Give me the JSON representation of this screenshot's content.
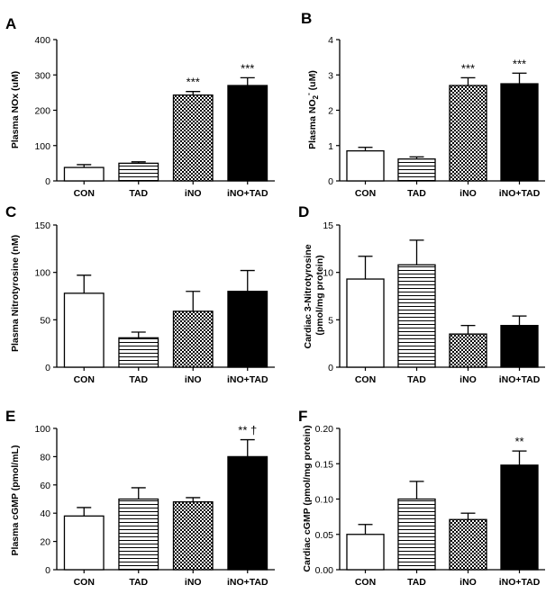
{
  "figure": {
    "panels": [
      {
        "letter": "A",
        "ylabel": "Plasma NOx (uM)",
        "ylabel_extra": ""
      },
      {
        "letter": "B",
        "ylabel": "Plasma NO",
        "ylabel_extra": "2",
        "ylabel_sup": "-",
        "ylabel_unit": " (uM)"
      },
      {
        "letter": "C",
        "ylabel": "Plasma Nitrotyrosine (nM)",
        "ylabel_extra": ""
      },
      {
        "letter": "D",
        "ylabel": "Cardiac 3-Nitrotyrosine",
        "ylabel_line2": "(pmol/mg protein)"
      },
      {
        "letter": "E",
        "ylabel": "Plasma cGMP (pmol/mL)",
        "ylabel_extra": ""
      },
      {
        "letter": "F",
        "ylabel": "Cardiac cGMP (pmol/mg protein)",
        "ylabel_extra": ""
      }
    ]
  },
  "chart_data": [
    {
      "type": "bar",
      "panel": "A",
      "categories": [
        "CON",
        "TAD",
        "iNO",
        "iNO+TAD"
      ],
      "values": [
        38,
        50,
        243,
        270
      ],
      "errors": [
        8,
        4,
        10,
        22
      ],
      "annotations": [
        "",
        "",
        "***",
        "***"
      ],
      "ylabel": "Plasma NOx (uM)",
      "ylim": [
        0,
        400
      ],
      "yticks": [
        0,
        100,
        200,
        300,
        400
      ],
      "patterns": [
        "white",
        "horizontal-lines",
        "checkered",
        "black"
      ],
      "grid": false
    },
    {
      "type": "bar",
      "panel": "B",
      "categories": [
        "CON",
        "TAD",
        "iNO",
        "iNO+TAD"
      ],
      "values": [
        0.85,
        0.62,
        2.7,
        2.75
      ],
      "errors": [
        0.1,
        0.06,
        0.22,
        0.3
      ],
      "annotations": [
        "",
        "",
        "***",
        "***"
      ],
      "ylabel": "Plasma NO2- (uM)",
      "ylim": [
        0,
        4
      ],
      "yticks": [
        0,
        1,
        2,
        3,
        4
      ],
      "patterns": [
        "white",
        "horizontal-lines",
        "checkered",
        "black"
      ],
      "grid": false
    },
    {
      "type": "bar",
      "panel": "C",
      "categories": [
        "CON",
        "TAD",
        "iNO",
        "iNO+TAD"
      ],
      "values": [
        78,
        31,
        59,
        80
      ],
      "errors": [
        19,
        6,
        21,
        22
      ],
      "annotations": [
        "",
        "",
        "",
        ""
      ],
      "ylabel": "Plasma Nitrotyrosine (nM)",
      "ylim": [
        0,
        150
      ],
      "yticks": [
        0,
        50,
        100,
        150
      ],
      "patterns": [
        "white",
        "horizontal-lines",
        "checkered",
        "black"
      ],
      "grid": false
    },
    {
      "type": "bar",
      "panel": "D",
      "categories": [
        "CON",
        "TAD",
        "iNO",
        "iNO+TAD"
      ],
      "values": [
        9.3,
        10.8,
        3.5,
        4.4
      ],
      "errors": [
        2.4,
        2.6,
        0.9,
        1.0
      ],
      "annotations": [
        "",
        "",
        "",
        ""
      ],
      "ylabel": "Cardiac 3-Nitrotyrosine (pmol/mg protein)",
      "ylim": [
        0,
        15
      ],
      "yticks": [
        0,
        5,
        10,
        15
      ],
      "patterns": [
        "white",
        "horizontal-lines",
        "checkered",
        "black"
      ],
      "grid": false
    },
    {
      "type": "bar",
      "panel": "E",
      "categories": [
        "CON",
        "TAD",
        "iNO",
        "iNO+TAD"
      ],
      "values": [
        38,
        50,
        48,
        80
      ],
      "errors": [
        6,
        8,
        3,
        12
      ],
      "annotations": [
        "",
        "",
        "",
        "** †"
      ],
      "ylabel": "Plasma cGMP (pmol/mL)",
      "ylim": [
        0,
        100
      ],
      "yticks": [
        0,
        20,
        40,
        60,
        80,
        100
      ],
      "patterns": [
        "white",
        "horizontal-lines",
        "checkered",
        "black"
      ],
      "grid": false
    },
    {
      "type": "bar",
      "panel": "F",
      "categories": [
        "CON",
        "TAD",
        "iNO",
        "iNO+TAD"
      ],
      "values": [
        0.05,
        0.1,
        0.071,
        0.148
      ],
      "errors": [
        0.014,
        0.025,
        0.009,
        0.02
      ],
      "annotations": [
        "",
        "",
        "",
        "**"
      ],
      "ylabel": "Cardiac cGMP (pmol/mg protein)",
      "ylim": [
        0,
        0.2
      ],
      "yticks": [
        0,
        0.05,
        0.1,
        0.15,
        0.2
      ],
      "ytick_labels": [
        "0.00",
        "0.05",
        "0.10",
        "0.15",
        "0.20"
      ],
      "patterns": [
        "white",
        "horizontal-lines",
        "checkered",
        "black"
      ],
      "grid": false
    }
  ]
}
